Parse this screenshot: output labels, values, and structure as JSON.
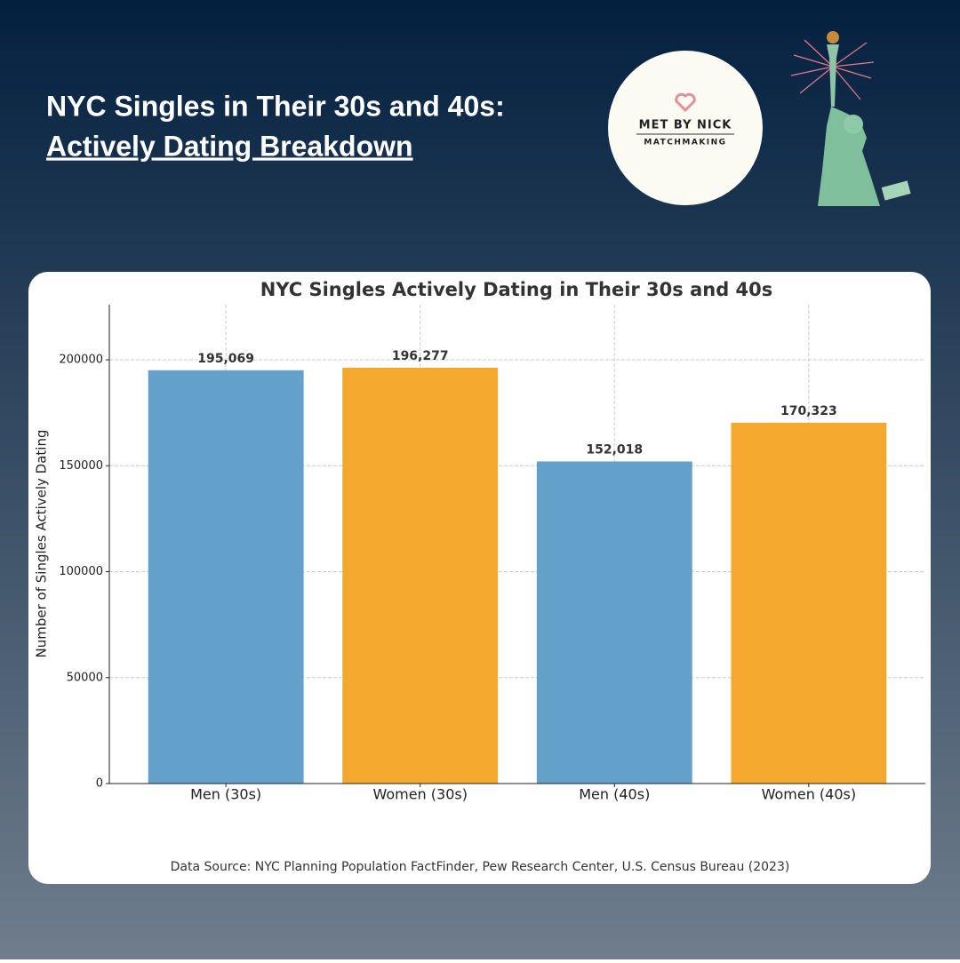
{
  "header": {
    "title_line1": "NYC Singles in Their 30s and 40s:",
    "title_line2": "Actively Dating Breakdown"
  },
  "logo": {
    "name": "MET BY NICK",
    "tagline": "MATCHMAKING"
  },
  "chart_data": {
    "type": "bar",
    "title": "NYC Singles Actively Dating in Their 30s and 40s",
    "y_label": "Number of Singles Actively Dating",
    "categories": [
      "Men (30s)",
      "Women (30s)",
      "Men (40s)",
      "Women (40s)"
    ],
    "values": [
      195069,
      196277,
      152018,
      170323
    ],
    "value_labels": [
      "195,069",
      "196,277",
      "152,018",
      "170,323"
    ],
    "colors": [
      "#609ec9",
      "#f4a62a",
      "#609ec9",
      "#f4a62a"
    ],
    "ylim": [
      0,
      226000
    ],
    "yticks": [
      0,
      50000,
      100000,
      150000,
      200000
    ],
    "grid": true
  },
  "source": "Data Source: NYC Planning Population FactFinder, Pew Research Center, U.S. Census Bureau (2023)"
}
